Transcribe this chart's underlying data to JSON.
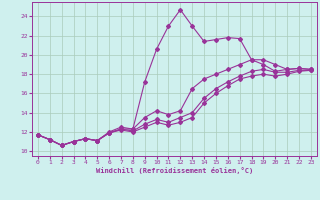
{
  "xlabel": "Windchill (Refroidissement éolien,°C)",
  "bg_color": "#cff0ee",
  "grid_color": "#aaccbb",
  "line_color": "#993399",
  "spine_color": "#993399",
  "xlim": [
    -0.5,
    23.5
  ],
  "ylim": [
    9.5,
    25.5
  ],
  "xticks": [
    0,
    1,
    2,
    3,
    4,
    5,
    6,
    7,
    8,
    9,
    10,
    11,
    12,
    13,
    14,
    15,
    16,
    17,
    18,
    19,
    20,
    21,
    22,
    23
  ],
  "yticks": [
    10,
    12,
    14,
    16,
    18,
    20,
    22,
    24
  ],
  "line1_x": [
    0,
    1,
    2,
    3,
    4,
    5,
    6,
    7,
    8,
    9,
    10,
    11,
    12,
    13,
    14,
    15,
    16,
    17,
    18,
    19,
    20,
    21,
    22,
    23
  ],
  "line1_y": [
    11.7,
    11.2,
    10.6,
    11.0,
    11.3,
    11.1,
    12.0,
    12.5,
    12.3,
    17.2,
    20.6,
    23.0,
    24.7,
    23.0,
    21.4,
    21.6,
    21.8,
    21.7,
    19.5,
    19.0,
    18.3,
    18.5,
    18.6,
    18.5
  ],
  "line2_x": [
    0,
    1,
    2,
    3,
    4,
    5,
    6,
    7,
    8,
    9,
    10,
    11,
    12,
    13,
    14,
    15,
    16,
    17,
    18,
    19,
    20,
    21,
    22,
    23
  ],
  "line2_y": [
    11.7,
    11.2,
    10.6,
    11.0,
    11.3,
    11.1,
    11.9,
    12.3,
    12.3,
    13.5,
    14.2,
    13.8,
    14.2,
    16.5,
    17.5,
    18.0,
    18.5,
    19.0,
    19.5,
    19.5,
    19.0,
    18.5,
    18.6,
    18.5
  ],
  "line3_x": [
    0,
    1,
    2,
    3,
    4,
    5,
    6,
    7,
    8,
    9,
    10,
    11,
    12,
    13,
    14,
    15,
    16,
    17,
    18,
    19,
    20,
    21,
    22,
    23
  ],
  "line3_y": [
    11.7,
    11.2,
    10.6,
    11.0,
    11.3,
    11.1,
    11.9,
    12.3,
    12.1,
    12.8,
    13.3,
    13.0,
    13.5,
    14.0,
    15.5,
    16.5,
    17.2,
    17.8,
    18.3,
    18.5,
    18.2,
    18.2,
    18.4,
    18.4
  ],
  "line4_x": [
    0,
    1,
    2,
    3,
    4,
    5,
    6,
    7,
    8,
    9,
    10,
    11,
    12,
    13,
    14,
    15,
    16,
    17,
    18,
    19,
    20,
    21,
    22,
    23
  ],
  "line4_y": [
    11.7,
    11.2,
    10.6,
    11.0,
    11.3,
    11.1,
    11.9,
    12.2,
    12.0,
    12.5,
    13.0,
    12.7,
    13.0,
    13.5,
    15.0,
    16.0,
    16.8,
    17.5,
    17.8,
    18.0,
    17.8,
    18.0,
    18.3,
    18.4
  ]
}
